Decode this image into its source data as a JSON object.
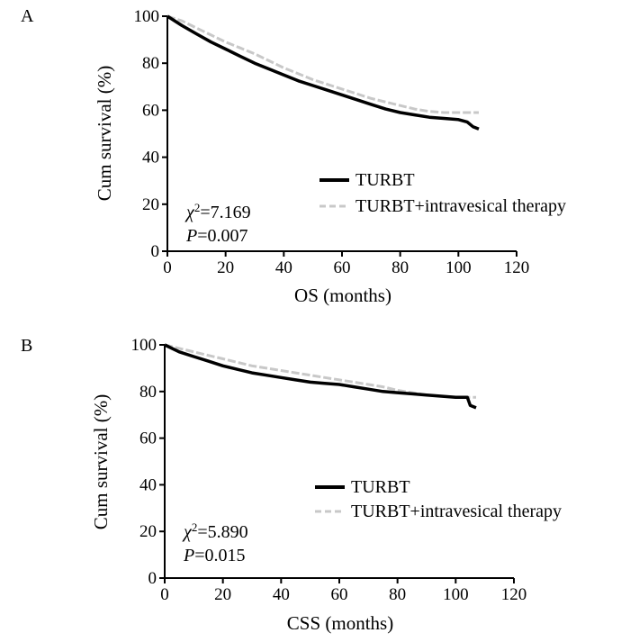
{
  "chart_data": [
    {
      "type": "line",
      "panel_label": "A",
      "xlabel": "OS (months)",
      "ylabel": "Cum survival (%)",
      "xlim": [
        0,
        120
      ],
      "ylim": [
        0,
        100
      ],
      "xticks": [
        "0",
        "20",
        "40",
        "60",
        "80",
        "100",
        "120"
      ],
      "yticks": [
        "0",
        "20",
        "40",
        "60",
        "80",
        "100"
      ],
      "legend_position": "lower-right",
      "stats": {
        "chi_symbol": "χ",
        "chi_exp": "2",
        "chi_value": "=7.169",
        "p_symbol": "P",
        "p_value": "=0.007"
      },
      "series": [
        {
          "name": "TURBT",
          "color": "#000000",
          "style": "solid",
          "x": [
            0,
            5,
            10,
            15,
            20,
            25,
            30,
            35,
            40,
            45,
            50,
            55,
            60,
            65,
            70,
            75,
            80,
            85,
            90,
            95,
            100,
            103,
            105,
            107
          ],
          "y": [
            100,
            96,
            92.5,
            89,
            86,
            83,
            80,
            77.5,
            75,
            72.5,
            70.5,
            68.5,
            66.5,
            64.5,
            62.5,
            60.5,
            59,
            58,
            57,
            56.5,
            56,
            55,
            53,
            52
          ]
        },
        {
          "name": "TURBT+intravesical therapy",
          "color": "#c8c8c8",
          "style": "dashed",
          "x": [
            0,
            5,
            10,
            15,
            20,
            25,
            30,
            35,
            40,
            45,
            50,
            55,
            60,
            65,
            70,
            75,
            80,
            85,
            90,
            95,
            100,
            105,
            107
          ],
          "y": [
            100,
            98,
            95,
            92,
            89,
            86.5,
            84,
            81,
            78,
            75.5,
            73,
            71,
            69,
            67,
            65,
            63.5,
            62,
            60.5,
            59.5,
            59,
            59,
            59,
            59
          ]
        }
      ]
    },
    {
      "type": "line",
      "panel_label": "B",
      "xlabel": "CSS (months)",
      "ylabel": "Cum survival (%)",
      "xlim": [
        0,
        120
      ],
      "ylim": [
        0,
        100
      ],
      "xticks": [
        "0",
        "20",
        "40",
        "60",
        "80",
        "100",
        "120"
      ],
      "yticks": [
        "0",
        "20",
        "40",
        "60",
        "80",
        "100"
      ],
      "legend_position": "lower-right",
      "stats": {
        "chi_symbol": "χ",
        "chi_exp": "2",
        "chi_value": "=5.890",
        "p_symbol": "P",
        "p_value": "=0.015"
      },
      "series": [
        {
          "name": "TURBT",
          "color": "#000000",
          "style": "solid",
          "x": [
            0,
            5,
            10,
            15,
            20,
            25,
            30,
            35,
            40,
            45,
            50,
            55,
            60,
            65,
            70,
            75,
            80,
            85,
            90,
            95,
            100,
            104,
            105,
            107
          ],
          "y": [
            100,
            97,
            95,
            93,
            91,
            89.5,
            88,
            87,
            86,
            85,
            84,
            83.5,
            83,
            82,
            81,
            80,
            79.5,
            79,
            78.5,
            78,
            77.5,
            77.5,
            74,
            73
          ]
        },
        {
          "name": "TURBT+intravesical therapy",
          "color": "#c8c8c8",
          "style": "dashed",
          "x": [
            0,
            5,
            10,
            15,
            20,
            25,
            30,
            35,
            40,
            45,
            50,
            55,
            60,
            65,
            70,
            75,
            80,
            85,
            90,
            95,
            100,
            105,
            107
          ],
          "y": [
            100,
            98.5,
            97,
            95.5,
            94,
            92.5,
            91,
            90,
            89,
            88,
            87,
            86,
            85,
            84,
            83,
            82,
            80.5,
            79.5,
            78.5,
            78,
            77.5,
            77.5,
            77.5
          ]
        }
      ]
    }
  ]
}
